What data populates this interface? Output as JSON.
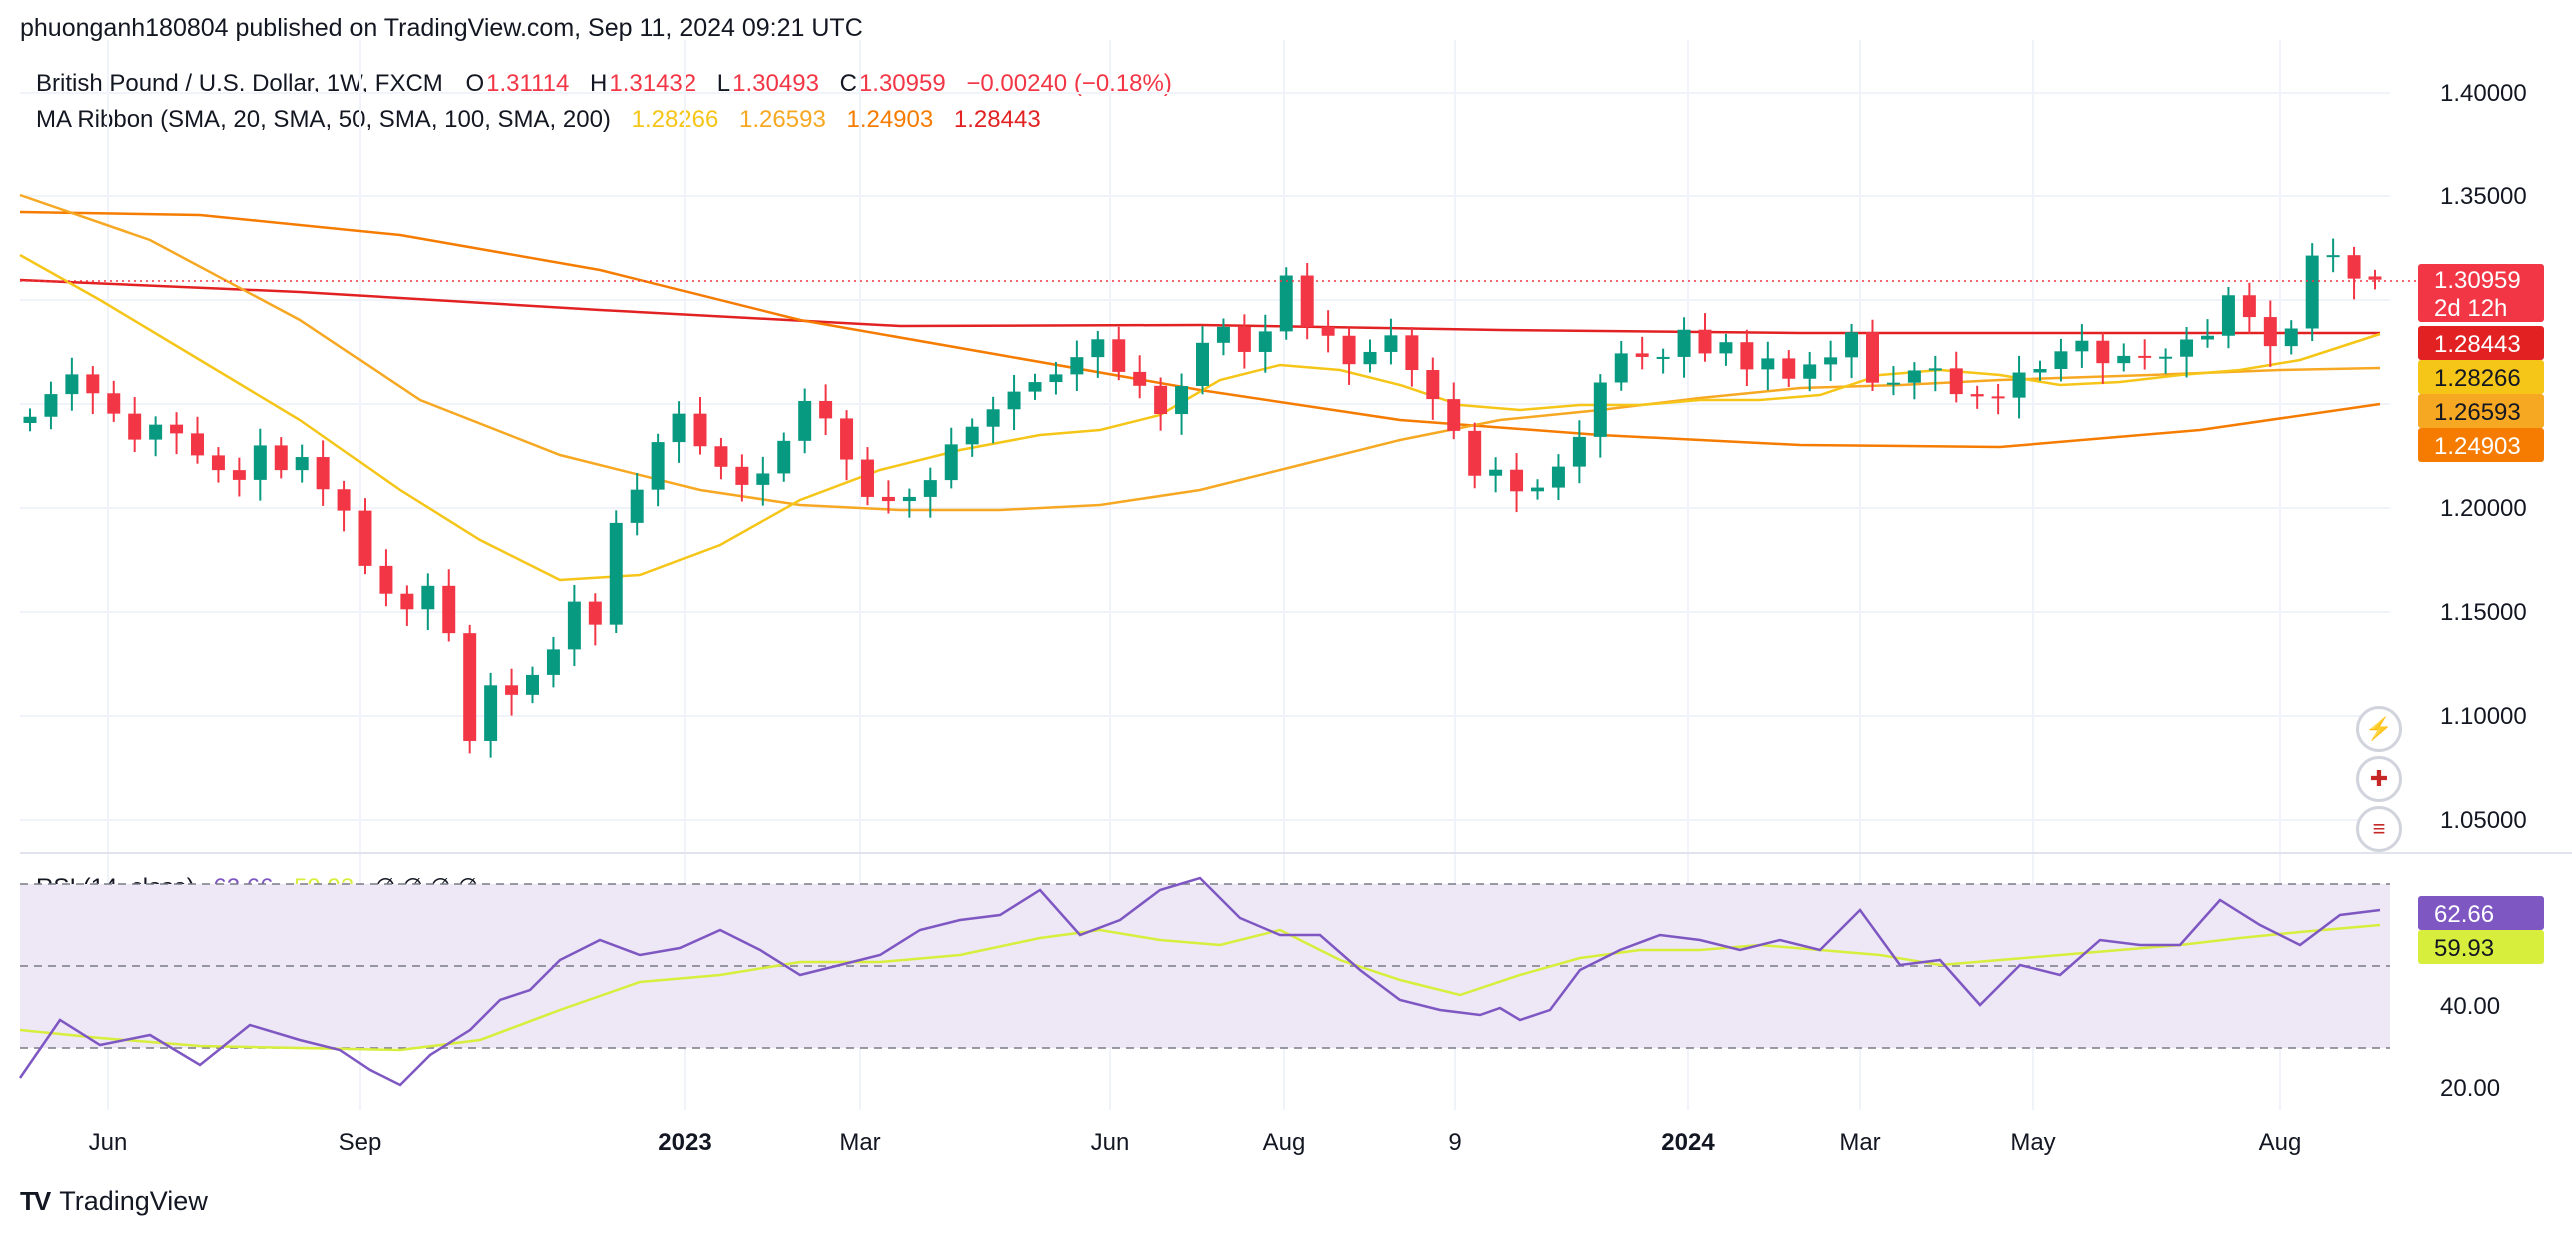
{
  "header": {
    "published": "phuonganh180804 published on TradingView.com, Sep 11, 2024 09:21 UTC"
  },
  "legend": {
    "symbol": "British Pound / U.S. Dollar, 1W, FXCM",
    "o_label": "O",
    "o_value": "1.31114",
    "h_label": "H",
    "h_value": "1.31432",
    "l_label": "L",
    "l_value": "1.30493",
    "c_label": "C",
    "c_value": "1.30959",
    "change": "−0.00240 (−0.18%)",
    "ma_label": "MA Ribbon (SMA, 20, SMA, 50, SMA, 100, SMA, 200)",
    "ma_values": [
      "1.28266",
      "1.26593",
      "1.24903",
      "1.28443"
    ],
    "rsi_label": "RSI (14, close)",
    "rsi_value": "62.66",
    "rsi_ma_value": "59.93",
    "rsi_hidden": "∅ ∅ ∅ ∅"
  },
  "colors": {
    "up": "#089981",
    "down": "#f23645",
    "sma20": "#f5c518",
    "sma50": "#f7a823",
    "sma100": "#f57c00",
    "sma200": "#e22222",
    "rsi": "#7e57c2",
    "rsi_ma": "#d8ee3c",
    "rsi_band": "#ede7f6",
    "price_tag": "#f23645"
  },
  "axis_labels": {
    "price": [
      "1.40000",
      "1.35000",
      "1.20000",
      "1.15000",
      "1.10000",
      "1.05000"
    ],
    "rsi": [
      "40.00",
      "20.00"
    ],
    "time": [
      "Jun",
      "Sep",
      "2023",
      "Mar",
      "Jun",
      "Aug",
      "9",
      "2024",
      "Mar",
      "May",
      "Aug"
    ]
  },
  "tags": {
    "last_price": "1.30959",
    "countdown": "2d 12h",
    "sma200": "1.28443",
    "sma20": "1.28266",
    "sma50": "1.26593",
    "sma100": "1.24903",
    "rsi": "62.66",
    "rsi_ma": "59.93"
  },
  "footer": {
    "brand": "TradingView",
    "logo": "TV"
  },
  "icons": [
    "lightning-icon",
    "uk-flag-icon",
    "us-flag-icon"
  ],
  "chart_data": {
    "type": "candlestick",
    "timeframe": "1W",
    "price_range": [
      1.035,
      1.425
    ],
    "rsi_range": [
      12,
      75
    ],
    "rsi_levels": [
      70,
      50,
      30
    ],
    "candles_first_close": 1.2436,
    "weekly_closes": [
      1.2436,
      1.2545,
      1.264,
      1.2549,
      1.2451,
      1.2326,
      1.2398,
      1.2356,
      1.225,
      1.2179,
      1.2132,
      1.2298,
      1.2179,
      1.2242,
      1.2087,
      1.1984,
      1.1718,
      1.1584,
      1.1509,
      1.1622,
      1.1394,
      1.0875,
      1.1143,
      1.1097,
      1.1193,
      1.1316,
      1.1546,
      1.1435,
      1.1925,
      1.2085,
      1.2314,
      1.2451,
      1.2294,
      1.2195,
      1.2108,
      1.2163,
      1.232,
      1.2512,
      1.2428,
      1.223,
      1.205,
      1.203,
      1.205,
      1.2131,
      1.2303,
      1.2388,
      1.2472,
      1.2557,
      1.2603,
      1.264,
      1.2723,
      1.2809,
      1.2652,
      1.2585,
      1.2449,
      1.2584,
      1.2792,
      1.2869,
      1.2748,
      1.2847,
      1.3116,
      1.2869,
      1.2826,
      1.2689,
      1.2748,
      1.2828,
      1.2661,
      1.2521,
      1.2368,
      1.2152,
      1.2181,
      1.2077,
      1.2095,
      1.2196,
      1.2339,
      1.2601,
      1.2741,
      1.2724,
      1.2724,
      1.2855,
      1.2741,
      1.2795,
      1.2664,
      1.2717,
      1.2619,
      1.2688,
      1.2722,
      1.2843,
      1.26,
      1.26,
      1.2659,
      1.2669,
      1.2545,
      1.2534,
      1.2528,
      1.2649,
      1.2666,
      1.2751,
      1.2802,
      1.2694,
      1.2729,
      1.2723,
      1.2725,
      1.2808,
      1.2826,
      1.3021,
      1.2916,
      1.2776,
      1.2861,
      1.3212,
      1.3214,
      1.3101,
      1.30959
    ],
    "last_candle": {
      "open": 1.31114,
      "high": 1.31432,
      "low": 1.30493,
      "close": 1.30959
    },
    "ma_ribbon": {
      "sma20": 1.28266,
      "sma50": 1.26593,
      "sma100": 1.24903,
      "sma200": 1.28443
    },
    "rsi_last": 62.66,
    "rsi_ma_last": 59.93
  }
}
